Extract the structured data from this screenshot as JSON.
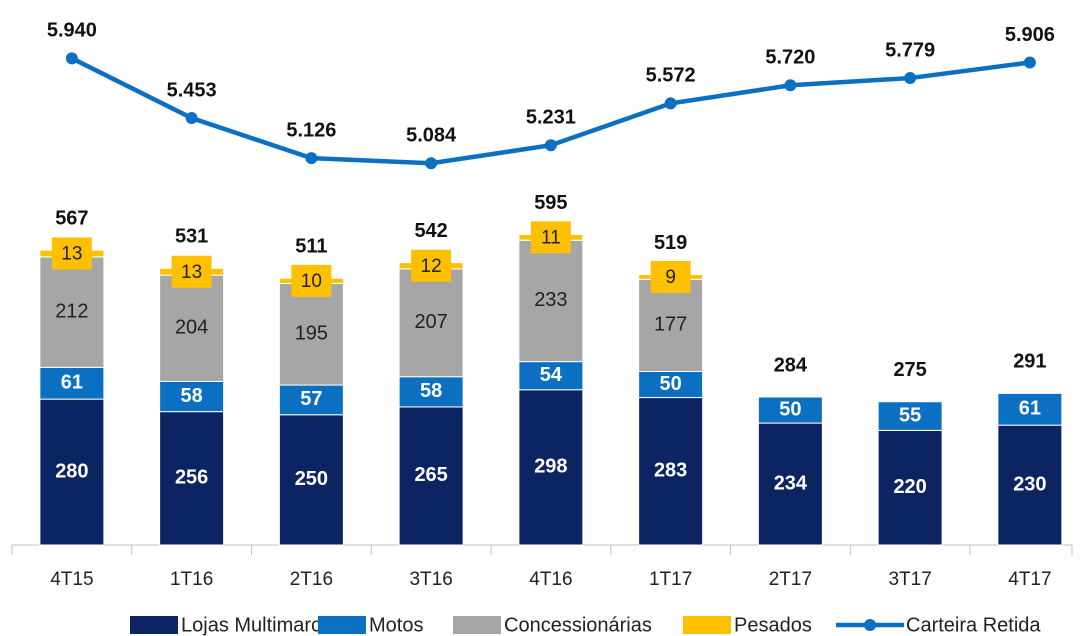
{
  "chart_data": {
    "type": "bar",
    "stacked": true,
    "categories": [
      "4T15",
      "1T16",
      "2T16",
      "3T16",
      "4T16",
      "1T17",
      "2T17",
      "3T17",
      "4T17"
    ],
    "series": [
      {
        "name": "Lojas Multimarcas",
        "color": "#0c2461",
        "values": [
          280,
          256,
          250,
          265,
          298,
          283,
          234,
          220,
          230
        ]
      },
      {
        "name": "Motos",
        "color": "#0b70c2",
        "values": [
          61,
          58,
          57,
          58,
          54,
          50,
          50,
          55,
          61
        ]
      },
      {
        "name": "Concessionárias",
        "color": "#a6a6a6",
        "values": [
          212,
          204,
          195,
          207,
          233,
          177,
          null,
          null,
          null
        ]
      },
      {
        "name": "Pesados",
        "color": "#ffc000",
        "values": [
          13,
          13,
          10,
          12,
          11,
          9,
          null,
          null,
          null
        ]
      },
      {
        "name": "Carteira Retida",
        "color": "#0b70c2",
        "axis": "y2",
        "type": "line",
        "values": [
          5940,
          5453,
          5126,
          5084,
          5231,
          5572,
          5720,
          5779,
          5906
        ],
        "value_labels": [
          "5.940",
          "5.453",
          "5.126",
          "5.084",
          "5.231",
          "5.572",
          "5.720",
          "5.779",
          "5.906"
        ]
      }
    ],
    "totals": [
      567,
      531,
      511,
      542,
      595,
      519,
      284,
      275,
      291
    ],
    "ylim": [
      0,
      1000
    ],
    "y2lim": [
      1970,
      6220
    ],
    "legend": "bottom"
  }
}
